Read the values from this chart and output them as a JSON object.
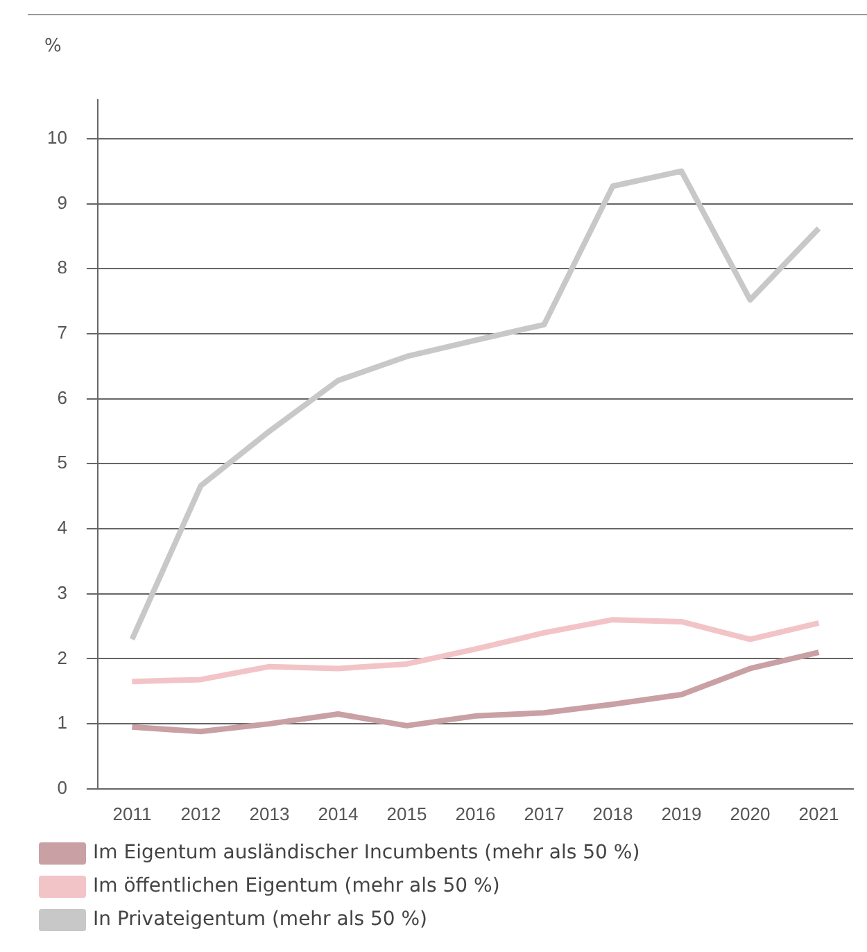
{
  "chart_data": {
    "type": "line",
    "ylabel": "%",
    "categories": [
      "2011",
      "2012",
      "2013",
      "2014",
      "2015",
      "2016",
      "2017",
      "2018",
      "2019",
      "2020",
      "2021"
    ],
    "series": [
      {
        "name": "Im Eigentum ausländischer Incumbents (mehr als 50 %)",
        "color": "#c9a0a4",
        "values": [
          0.95,
          0.88,
          1.0,
          1.15,
          0.97,
          1.12,
          1.17,
          1.3,
          1.45,
          1.85,
          2.1
        ]
      },
      {
        "name": "Im öffentlichen Eigentum (mehr als 50 %)",
        "color": "#f2c4c8",
        "values": [
          1.65,
          1.68,
          1.88,
          1.85,
          1.92,
          2.15,
          2.4,
          2.6,
          2.57,
          2.3,
          2.55
        ]
      },
      {
        "name": "In Privateigentum (mehr als 50 %)",
        "color": "#c8c8c8",
        "values": [
          2.3,
          4.66,
          5.5,
          6.28,
          6.65,
          6.9,
          7.14,
          9.27,
          9.5,
          7.52,
          8.62
        ]
      }
    ],
    "ylim": [
      0,
      10.6
    ],
    "yticks": [
      0,
      1,
      2,
      3,
      4,
      5,
      6,
      7,
      8,
      9,
      10
    ],
    "grid": "y",
    "legend": "bottom",
    "marker": "none",
    "line_style": "solid"
  }
}
